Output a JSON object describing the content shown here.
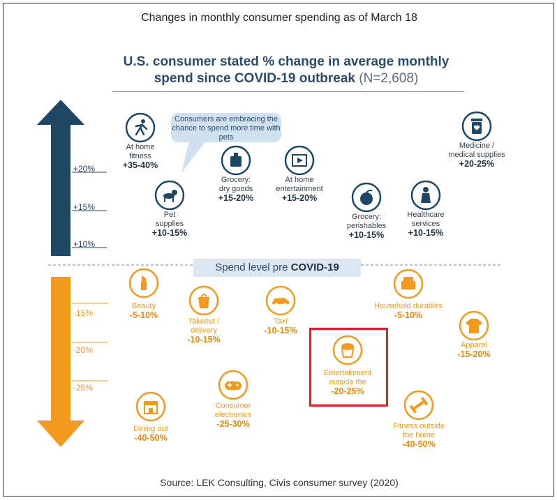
{
  "page_title": "Changes in monthly consumer spending as of March 18",
  "source": "Source: LEK Consulting, Civis consumer survey (2020)",
  "colors": {
    "navy": "#1e4763",
    "orange": "#f39a1e",
    "highlight": "#e02020",
    "bubble": "#cfe1ef"
  },
  "chart_data": {
    "type": "scatter",
    "title": "U.S. consumer stated % change in average monthly spend since COVID-19 outbreak",
    "title_note": "(N=2,608)",
    "baseline_label_prefix": "Spend level pre ",
    "baseline_label_bold": "COVID-19",
    "callout": "Consumers are embracing the chance to spend more time with pets",
    "y_ticks_positive": [
      "+20%",
      "+15%",
      "+10%"
    ],
    "y_ticks_negative": [
      "-15%",
      "-20%",
      "-25%"
    ],
    "increases": [
      {
        "name": [
          "At home",
          "fitness"
        ],
        "value": "+35-40%",
        "icon": "running-person-icon"
      },
      {
        "name": [
          "Pet",
          "supplies"
        ],
        "value": "+10-15%",
        "icon": "dog-icon"
      },
      {
        "name": [
          "Grocery:",
          "dry goods"
        ],
        "value": "+15-20%",
        "icon": "grocery-bag-icon"
      },
      {
        "name": [
          "At home",
          "entertainment"
        ],
        "value": "+15-20%",
        "icon": "film-strip-icon"
      },
      {
        "name": [
          "Grocery:",
          "perishables"
        ],
        "value": "+10-15%",
        "icon": "fruit-icon"
      },
      {
        "name": [
          "Healthcare",
          "services"
        ],
        "value": "+10-15%",
        "icon": "doctor-icon"
      },
      {
        "name": [
          "Medicine /",
          "medical supplies"
        ],
        "value": "+20-25%",
        "icon": "medicine-bottle-icon"
      }
    ],
    "decreases": [
      {
        "name": [
          "Beauty"
        ],
        "value": "-5-10%",
        "icon": "lipstick-icon"
      },
      {
        "name": [
          "Takeout /",
          "delivery"
        ],
        "value": "-10-15%",
        "icon": "takeout-bag-icon"
      },
      {
        "name": [
          "Taxi"
        ],
        "value": "-10-15%",
        "icon": "car-icon"
      },
      {
        "name": [
          "Household durables"
        ],
        "value": "-5-10%",
        "icon": "armchair-icon"
      },
      {
        "name": [
          "Apparel"
        ],
        "value": "-15-20%",
        "icon": "shirt-icon"
      },
      {
        "name": [
          "Entertainment",
          "outside the"
        ],
        "value": "-20-25%",
        "icon": "popcorn-icon"
      },
      {
        "name": [
          "Consumer",
          "electronics"
        ],
        "value": "-25-30%",
        "icon": "gamepad-icon"
      },
      {
        "name": [
          "Dining out"
        ],
        "value": "-40-50%",
        "icon": "storefront-icon"
      },
      {
        "name": [
          "Fitness outside",
          "the home"
        ],
        "value": "-40-50%",
        "icon": "dumbbell-icon"
      }
    ]
  }
}
